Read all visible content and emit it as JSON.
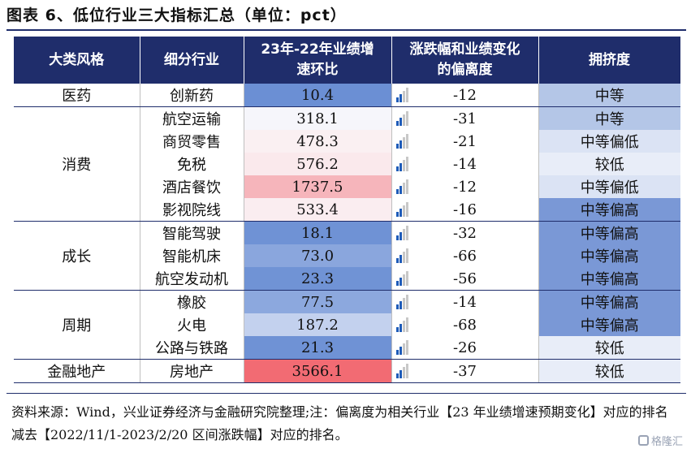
{
  "title": "图表 6、低位行业三大指标汇总（单位：pct）",
  "columns": [
    "大类风格",
    "细分行业",
    "23年-22年业绩增速环比",
    "涨跌幅和业绩变化的偏离度",
    "拥挤度"
  ],
  "groups": [
    {
      "category": "医药",
      "rows": [
        {
          "industry": "创新药",
          "growth": "10.4",
          "growth_color": "#6b8fd4",
          "deviation": "-12",
          "crowding": "中等",
          "crowding_color": "#b4c6e7"
        }
      ]
    },
    {
      "category": "消费",
      "rows": [
        {
          "industry": "航空运输",
          "growth": "318.1",
          "growth_color": "#f6f6fb",
          "deviation": "-31",
          "crowding": "中等",
          "crowding_color": "#b4c6e7"
        },
        {
          "industry": "商贸零售",
          "growth": "478.3",
          "growth_color": "#faf0f2",
          "deviation": "-21",
          "crowding": "中等偏低",
          "crowding_color": "#dbe3f4"
        },
        {
          "industry": "免税",
          "growth": "576.2",
          "growth_color": "#fae9ec",
          "deviation": "-14",
          "crowding": "较低",
          "crowding_color": "#e8edf8"
        },
        {
          "industry": "酒店餐饮",
          "growth": "1737.5",
          "growth_color": "#f6b5bb",
          "deviation": "-12",
          "crowding": "中等偏低",
          "crowding_color": "#dbe3f4"
        },
        {
          "industry": "影视院线",
          "growth": "533.4",
          "growth_color": "#faedf0",
          "deviation": "-16",
          "crowding": "中等偏高",
          "crowding_color": "#7a98d6"
        }
      ]
    },
    {
      "category": "成长",
      "rows": [
        {
          "industry": "智能驾驶",
          "growth": "18.1",
          "growth_color": "#6f92d5",
          "deviation": "-32",
          "crowding": "中等偏高",
          "crowding_color": "#7a98d6"
        },
        {
          "industry": "智能机床",
          "growth": "73.0",
          "growth_color": "#8aa6dd",
          "deviation": "-66",
          "crowding": "中等偏高",
          "crowding_color": "#7a98d6"
        },
        {
          "industry": "航空发动机",
          "growth": "23.3",
          "growth_color": "#7093d5",
          "deviation": "-56",
          "crowding": "中等偏高",
          "crowding_color": "#7a98d6"
        }
      ]
    },
    {
      "category": "周期",
      "rows": [
        {
          "industry": "橡胶",
          "growth": "77.5",
          "growth_color": "#8ca8de",
          "deviation": "-14",
          "crowding": "中等偏高",
          "crowding_color": "#7a98d6"
        },
        {
          "industry": "火电",
          "growth": "187.2",
          "growth_color": "#c3d1ee",
          "deviation": "-68",
          "crowding": "中等偏高",
          "crowding_color": "#7a98d6"
        },
        {
          "industry": "公路与铁路",
          "growth": "21.3",
          "growth_color": "#6f92d5",
          "deviation": "-26",
          "crowding": "较低",
          "crowding_color": "#e8edf8"
        }
      ]
    },
    {
      "category": "金融地产",
      "rows": [
        {
          "industry": "房地产",
          "growth": "3566.1",
          "growth_color": "#f26b73",
          "deviation": "-37",
          "crowding": "较低",
          "crowding_color": "#e8edf8"
        }
      ]
    }
  ],
  "note": "资料来源：Wind，兴业证券经济与金融研究院整理;注：偏离度为相关行业【23 年业绩增速预期变化】对应的排名减去【2022/11/1-2023/2/20 区间涨跌幅】对应的排名。",
  "watermark": "格隆汇",
  "colors": {
    "header_bg": "#1f2d6b",
    "icon_blue": "#1e5bb8",
    "icon_grey": "#c8c8c8"
  }
}
